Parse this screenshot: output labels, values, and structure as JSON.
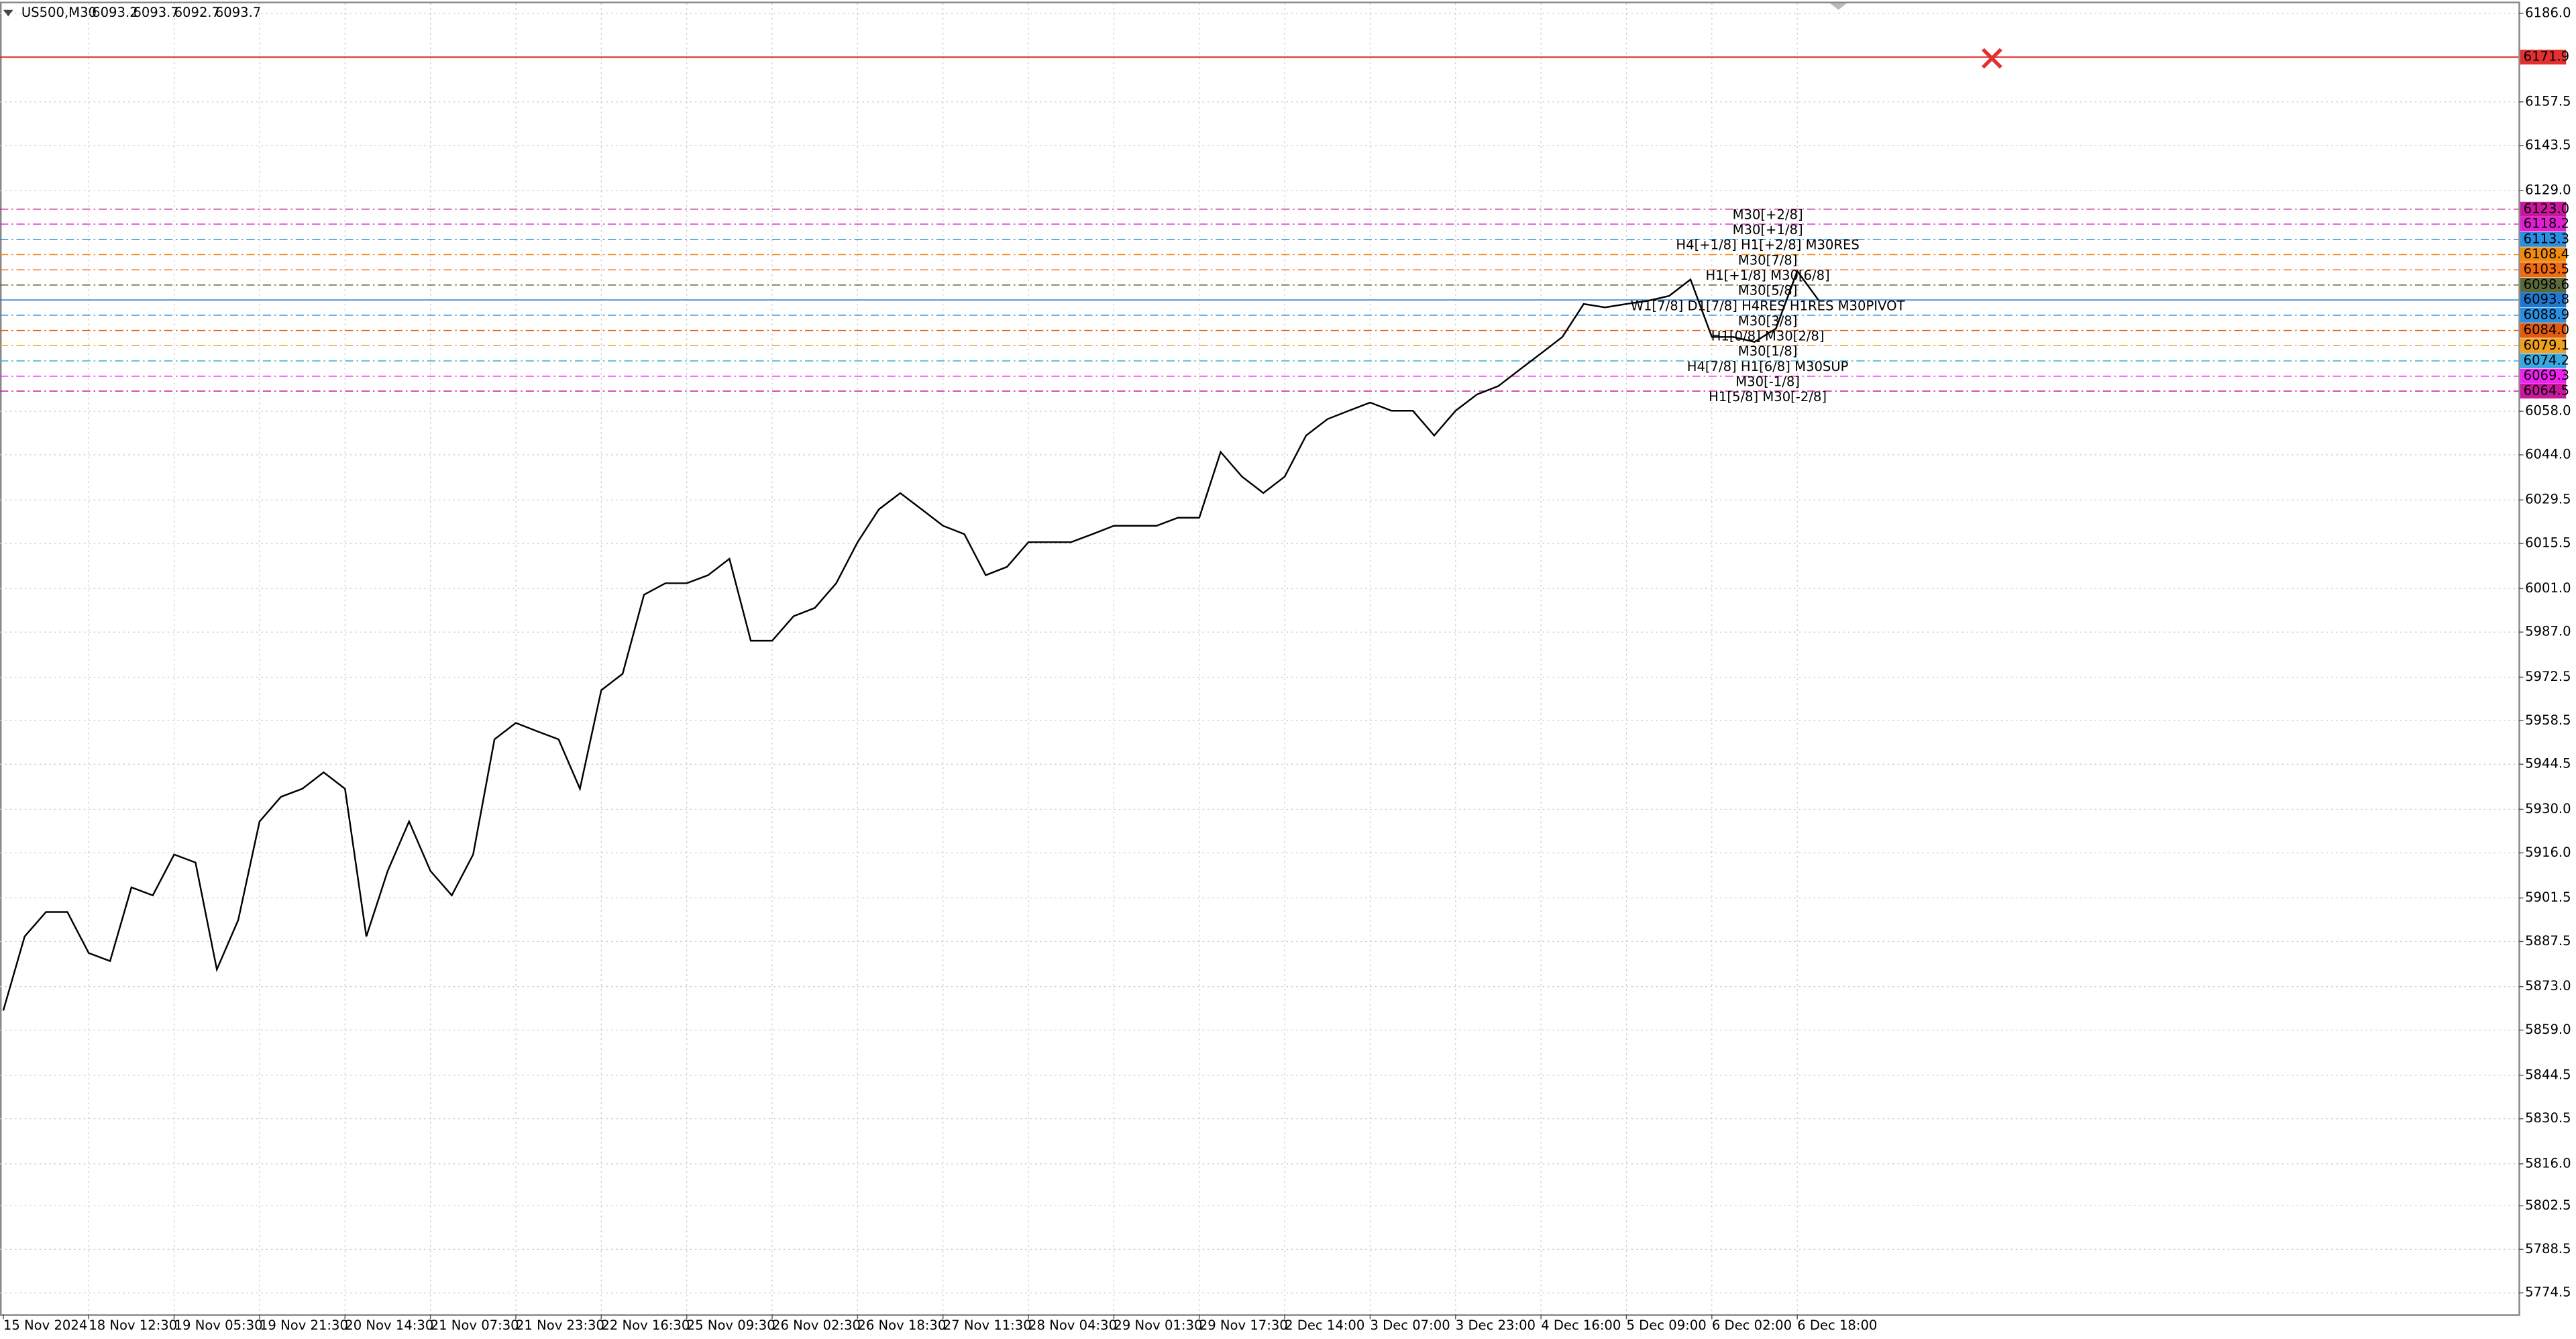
{
  "chart_data": {
    "type": "line",
    "symbol": "US500,M30",
    "ohlc": [
      6093.2,
      6093.7,
      6092.7,
      6093.7
    ],
    "categories": [
      "15 Nov 2024",
      null,
      null,
      null,
      "18 Nov 12:30",
      null,
      null,
      null,
      "19 Nov 05:30",
      null,
      null,
      null,
      "19 Nov 21:30",
      null,
      null,
      null,
      "20 Nov 14:30",
      null,
      null,
      null,
      "21 Nov 07:30",
      null,
      null,
      null,
      "21 Nov 23:30",
      null,
      null,
      null,
      "22 Nov 16:30",
      null,
      null,
      null,
      "25 Nov 09:30",
      null,
      null,
      null,
      "26 Nov 02:30",
      null,
      null,
      null,
      "26 Nov 18:30",
      null,
      null,
      null,
      "27 Nov 11:30",
      null,
      null,
      null,
      "28 Nov 04:30",
      null,
      null,
      null,
      "29 Nov 01:30",
      null,
      null,
      null,
      "29 Nov 17:30",
      null,
      null,
      null,
      "2 Dec 14:00",
      null,
      null,
      null,
      "3 Dec 07:00",
      null,
      null,
      null,
      "3 Dec 23:00",
      null,
      null,
      null,
      "4 Dec 16:00",
      null,
      null,
      null,
      "5 Dec 09:00",
      null,
      null,
      null,
      "6 Dec 02:00",
      null,
      null,
      null,
      "6 Dec 18:00",
      null
    ],
    "values": [
      5865.3,
      5889.1,
      5897.0,
      5897.0,
      5883.8,
      5881.2,
      5904.9,
      5902.3,
      5915.5,
      5912.9,
      5878.5,
      5894.4,
      5926.1,
      5934.0,
      5936.6,
      5941.9,
      5936.6,
      5889.1,
      5910.2,
      5926.1,
      5910.2,
      5902.3,
      5915.5,
      5952.5,
      5957.8,
      5955.1,
      5952.5,
      5936.6,
      5968.3,
      5973.6,
      5999.0,
      6002.7,
      6002.7,
      6005.3,
      6010.6,
      5984.2,
      5984.2,
      5992.1,
      5994.8,
      6002.7,
      6015.9,
      6026.5,
      6031.7,
      6026.5,
      6021.2,
      6018.5,
      6005.3,
      6008.0,
      6015.9,
      6015.9,
      6015.9,
      6018.5,
      6021.2,
      6021.2,
      6021.2,
      6023.8,
      6023.8,
      6044.9,
      6037.0,
      6031.7,
      6037.0,
      6050.2,
      6055.5,
      6058.2,
      6060.8,
      6058.2,
      6058.2,
      6050.2,
      6058.2,
      6063.4,
      6066.1,
      6071.4,
      6076.6,
      6081.9,
      6092.5,
      6091.4,
      6092.5,
      6093.5,
      6095.1,
      6100.4,
      6081.9,
      6081.9,
      6080.3,
      6084.6,
      6103.1,
      6093.7
    ],
    "color": "#000000",
    "ylim": [
      5767.6,
      6189.2
    ],
    "yticks": [
      {
        "value": 6186,
        "label": "6186.0"
      },
      6157.5,
      6143.5,
      {
        "value": 6129,
        "label": "6129.0"
      },
      {
        "value": 6058,
        "label": "6058.0"
      },
      {
        "value": 6044,
        "label": "6044.0"
      },
      6029.5,
      6015.5,
      {
        "value": 6001,
        "label": "6001.0"
      },
      {
        "value": 5987,
        "label": "5987.0"
      },
      5972.5,
      5958.5,
      5944.5,
      {
        "value": 5930,
        "label": "5930.0"
      },
      {
        "value": 5916,
        "label": "5916.0"
      },
      5901.5,
      5887.5,
      {
        "value": 5873,
        "label": "5873.0"
      },
      {
        "value": 5859,
        "label": "5859.0"
      },
      5844.5,
      5830.5,
      {
        "value": 5816,
        "label": "5816.0"
      },
      5802.5,
      5788.5,
      5774.5
    ],
    "grid": true,
    "stop_level": {
      "value": 6171.9,
      "color": "#e03030"
    },
    "levels": [
      {
        "value": 6123,
        "value_label": "6123.0",
        "text": "M30[+2/8]",
        "color": "#c8189c",
        "style": "dashdot"
      },
      {
        "value": 6118.2,
        "text": "M30[+1/8]",
        "color": "#e020d0",
        "style": "dashdot"
      },
      {
        "value": 6113.3,
        "text": "H4[+1/8] H1[+2/8] M30RES",
        "color": "#2a8fe0",
        "style": "dashdot"
      },
      {
        "value": 6108.4,
        "text": "M30[7/8]",
        "color": "#f08a10",
        "style": "dashdot"
      },
      {
        "value": 6103.5,
        "text": "H1[+1/8] M30[6/8]",
        "color": "#f06a10",
        "style": "dashdot"
      },
      {
        "value": 6098.6,
        "text": "M30[5/8]",
        "color": "#5a6a3a",
        "style": "dashdot"
      },
      {
        "value": 6093.8,
        "text": "W1[7/8] D1[7/8] H4RES H1RES M30PIVOT",
        "color": "#1e78d2",
        "style": "solid"
      },
      {
        "value": 6088.9,
        "text": "M30[3/8]",
        "color": "#2a8fe0",
        "style": "dashdot"
      },
      {
        "value": 6084,
        "value_label": "6084.0",
        "text": "H1[0/8] M30[2/8]",
        "color": "#e05a10",
        "style": "dashdot"
      },
      {
        "value": 6079.1,
        "text": "M30[1/8]",
        "color": "#f0a020",
        "style": "dashdot"
      },
      {
        "value": 6074.2,
        "text": "H4[7/8] H1[6/8] M30SUP",
        "color": "#3aa8e0",
        "style": "dashdot"
      },
      {
        "value": 6069.3,
        "text": "M30[-1/8]",
        "color": "#f020f0",
        "style": "dashdot"
      },
      {
        "value": 6064.5,
        "text": "H1[5/8] M30[-2/8]",
        "color": "#c8189c",
        "style": "dashdot"
      }
    ]
  }
}
